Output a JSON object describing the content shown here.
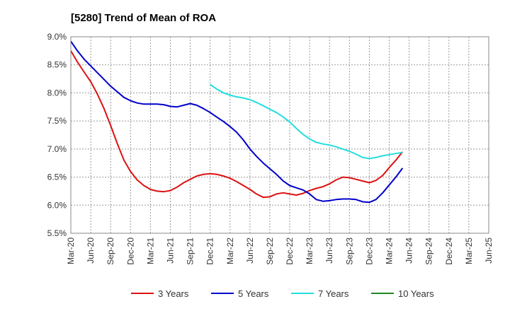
{
  "chart_data": {
    "type": "line",
    "title": "[5280]  Trend of Mean of ROA",
    "xlabel": "",
    "ylabel": "",
    "ylim": [
      5.5,
      9.0
    ],
    "yticks": [
      5.5,
      6.0,
      6.5,
      7.0,
      7.5,
      8.0,
      8.5,
      9.0
    ],
    "ytick_labels": [
      "5.5%",
      "6.0%",
      "6.5%",
      "7.0%",
      "7.5%",
      "8.0%",
      "8.5%",
      "9.0%"
    ],
    "x_index_range": [
      0,
      21
    ],
    "xtick_labels": [
      "Mar-20",
      "Jun-20",
      "Sep-20",
      "Dec-20",
      "Mar-21",
      "Jun-21",
      "Sep-21",
      "Dec-21",
      "Mar-22",
      "Jun-22",
      "Sep-22",
      "Dec-22",
      "Mar-23",
      "Jun-23",
      "Sep-23",
      "Dec-23",
      "Mar-24",
      "Jun-24",
      "Sep-24",
      "Dec-24",
      "Mar-25",
      "Jun-25"
    ],
    "grid": true,
    "legend_position": "bottom",
    "series": [
      {
        "name": "3 Years",
        "color": "#dd1111",
        "points": [
          [
            0,
            8.75
          ],
          [
            0.33,
            8.55
          ],
          [
            0.67,
            8.37
          ],
          [
            1,
            8.2
          ],
          [
            1.33,
            7.98
          ],
          [
            1.67,
            7.72
          ],
          [
            2,
            7.42
          ],
          [
            2.33,
            7.1
          ],
          [
            2.67,
            6.8
          ],
          [
            3,
            6.6
          ],
          [
            3.33,
            6.45
          ],
          [
            3.67,
            6.35
          ],
          [
            4,
            6.28
          ],
          [
            4.33,
            6.25
          ],
          [
            4.67,
            6.24
          ],
          [
            5,
            6.26
          ],
          [
            5.33,
            6.32
          ],
          [
            5.67,
            6.4
          ],
          [
            6,
            6.46
          ],
          [
            6.33,
            6.52
          ],
          [
            6.67,
            6.55
          ],
          [
            7,
            6.56
          ],
          [
            7.33,
            6.55
          ],
          [
            7.67,
            6.52
          ],
          [
            8,
            6.48
          ],
          [
            8.33,
            6.42
          ],
          [
            8.67,
            6.35
          ],
          [
            9,
            6.28
          ],
          [
            9.33,
            6.2
          ],
          [
            9.67,
            6.14
          ],
          [
            10,
            6.15
          ],
          [
            10.33,
            6.2
          ],
          [
            10.67,
            6.22
          ],
          [
            11,
            6.2
          ],
          [
            11.33,
            6.18
          ],
          [
            11.67,
            6.21
          ],
          [
            12,
            6.26
          ],
          [
            12.33,
            6.3
          ],
          [
            12.67,
            6.33
          ],
          [
            13,
            6.38
          ],
          [
            13.33,
            6.45
          ],
          [
            13.67,
            6.5
          ],
          [
            14,
            6.49
          ],
          [
            14.33,
            6.46
          ],
          [
            14.67,
            6.43
          ],
          [
            15,
            6.4
          ],
          [
            15.33,
            6.44
          ],
          [
            15.67,
            6.53
          ],
          [
            16,
            6.67
          ],
          [
            16.33,
            6.8
          ],
          [
            16.67,
            6.95
          ]
        ]
      },
      {
        "name": "5 Years",
        "color": "#0000cc",
        "points": [
          [
            0,
            8.92
          ],
          [
            0.33,
            8.75
          ],
          [
            0.67,
            8.6
          ],
          [
            1,
            8.48
          ],
          [
            1.33,
            8.36
          ],
          [
            1.67,
            8.24
          ],
          [
            2,
            8.12
          ],
          [
            2.33,
            8.02
          ],
          [
            2.67,
            7.92
          ],
          [
            3,
            7.86
          ],
          [
            3.33,
            7.82
          ],
          [
            3.67,
            7.8
          ],
          [
            4,
            7.8
          ],
          [
            4.33,
            7.8
          ],
          [
            4.67,
            7.79
          ],
          [
            5,
            7.76
          ],
          [
            5.33,
            7.75
          ],
          [
            5.67,
            7.78
          ],
          [
            6,
            7.81
          ],
          [
            6.33,
            7.78
          ],
          [
            6.67,
            7.72
          ],
          [
            7,
            7.65
          ],
          [
            7.33,
            7.57
          ],
          [
            7.67,
            7.49
          ],
          [
            8,
            7.4
          ],
          [
            8.33,
            7.3
          ],
          [
            8.67,
            7.16
          ],
          [
            9,
            7.0
          ],
          [
            9.33,
            6.87
          ],
          [
            9.67,
            6.75
          ],
          [
            10,
            6.65
          ],
          [
            10.33,
            6.55
          ],
          [
            10.67,
            6.43
          ],
          [
            11,
            6.35
          ],
          [
            11.33,
            6.31
          ],
          [
            11.67,
            6.27
          ],
          [
            12,
            6.2
          ],
          [
            12.33,
            6.1
          ],
          [
            12.67,
            6.07
          ],
          [
            13,
            6.08
          ],
          [
            13.33,
            6.1
          ],
          [
            13.67,
            6.11
          ],
          [
            14,
            6.11
          ],
          [
            14.33,
            6.1
          ],
          [
            14.67,
            6.06
          ],
          [
            15,
            6.05
          ],
          [
            15.33,
            6.1
          ],
          [
            15.67,
            6.22
          ],
          [
            16,
            6.36
          ],
          [
            16.33,
            6.5
          ],
          [
            16.67,
            6.66
          ]
        ]
      },
      {
        "name": "7 Years",
        "color": "#22dddd",
        "points": [
          [
            7,
            8.15
          ],
          [
            7.33,
            8.07
          ],
          [
            7.67,
            8.0
          ],
          [
            8,
            7.96
          ],
          [
            8.33,
            7.93
          ],
          [
            8.67,
            7.91
          ],
          [
            9,
            7.88
          ],
          [
            9.33,
            7.83
          ],
          [
            9.67,
            7.77
          ],
          [
            10,
            7.71
          ],
          [
            10.33,
            7.65
          ],
          [
            10.67,
            7.57
          ],
          [
            11,
            7.48
          ],
          [
            11.33,
            7.37
          ],
          [
            11.67,
            7.26
          ],
          [
            12,
            7.18
          ],
          [
            12.33,
            7.12
          ],
          [
            12.67,
            7.09
          ],
          [
            13,
            7.07
          ],
          [
            13.33,
            7.04
          ],
          [
            13.67,
            7.0
          ],
          [
            14,
            6.96
          ],
          [
            14.33,
            6.91
          ],
          [
            14.67,
            6.85
          ],
          [
            15,
            6.83
          ],
          [
            15.33,
            6.85
          ],
          [
            15.67,
            6.88
          ],
          [
            16,
            6.9
          ],
          [
            16.33,
            6.92
          ],
          [
            16.67,
            6.94
          ]
        ]
      },
      {
        "name": "10 Years",
        "color": "#228822",
        "points": []
      }
    ]
  }
}
